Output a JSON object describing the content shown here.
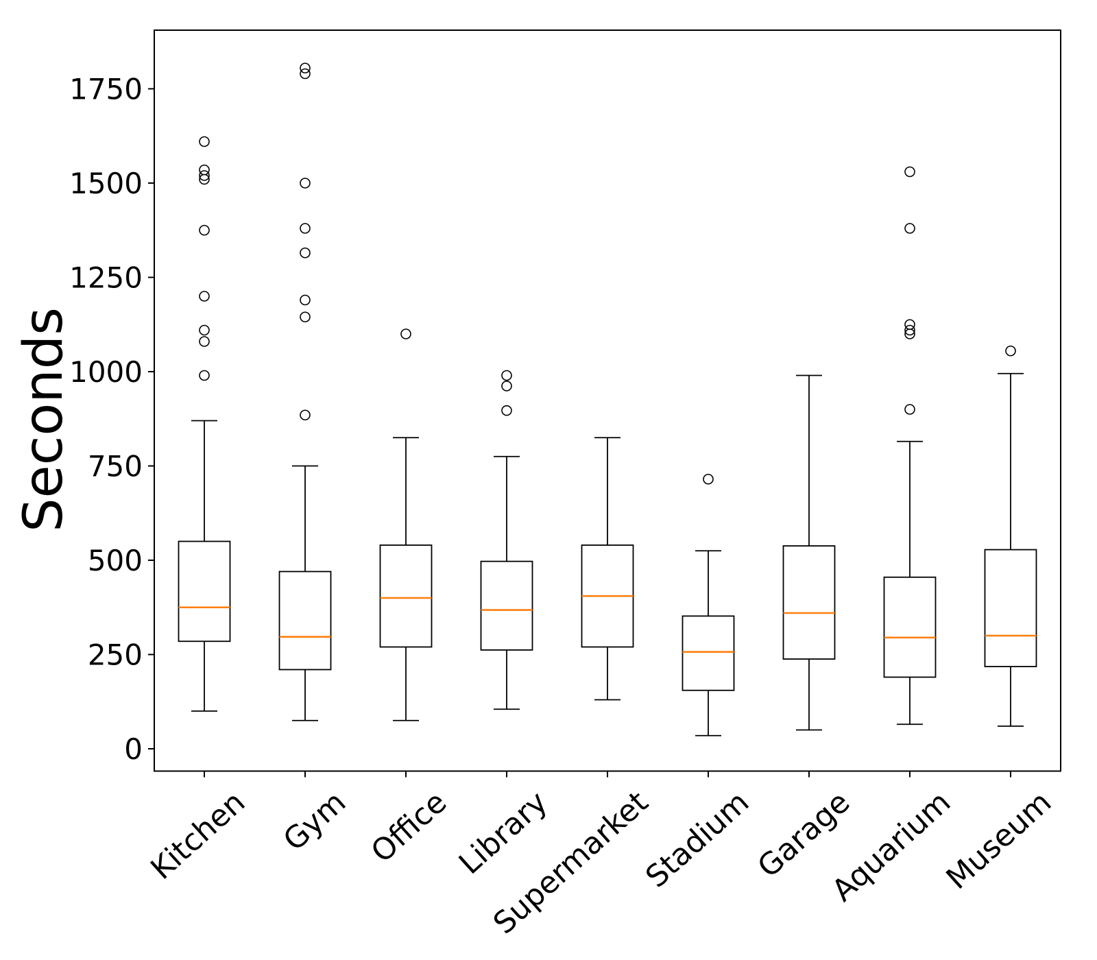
{
  "figure": {
    "background": "#ffffff"
  },
  "chart_data": {
    "type": "boxplot",
    "title": "",
    "xlabel": "",
    "ylabel": "Seconds",
    "categories": [
      "Kitchen",
      "Gym",
      "Office",
      "Library",
      "Supermarket",
      "Stadium",
      "Garage",
      "Aquarium",
      "Museum"
    ],
    "yticks": [
      0,
      250,
      500,
      750,
      1000,
      1250,
      1500,
      1750
    ],
    "ylim": [
      -60,
      1905
    ],
    "grid": false,
    "legend": "none",
    "colors": {
      "median": "#ff7f0e",
      "box_stroke": "#000000",
      "whisker": "#000000",
      "outlier_stroke": "#000000",
      "background": "#ffffff"
    },
    "series": [
      {
        "name": "Kitchen",
        "whislo": 100,
        "q1": 285,
        "med": 375,
        "q3": 550,
        "whishi": 870,
        "outliers": [
          1610,
          1535,
          1520,
          1510,
          1375,
          1200,
          1110,
          1080,
          990
        ]
      },
      {
        "name": "Gym",
        "whislo": 75,
        "q1": 210,
        "med": 297,
        "q3": 470,
        "whishi": 750,
        "outliers": [
          1805,
          1790,
          1500,
          1380,
          1315,
          1190,
          1145,
          885
        ]
      },
      {
        "name": "Office",
        "whislo": 75,
        "q1": 270,
        "med": 400,
        "q3": 540,
        "whishi": 825,
        "outliers": [
          1100
        ]
      },
      {
        "name": "Library",
        "whislo": 105,
        "q1": 262,
        "med": 368,
        "q3": 497,
        "whishi": 775,
        "outliers": [
          990,
          962,
          897
        ]
      },
      {
        "name": "Supermarket",
        "whislo": 130,
        "q1": 270,
        "med": 405,
        "q3": 540,
        "whishi": 825,
        "outliers": []
      },
      {
        "name": "Stadium",
        "whislo": 35,
        "q1": 155,
        "med": 257,
        "q3": 352,
        "whishi": 525,
        "outliers": [
          715
        ]
      },
      {
        "name": "Garage",
        "whislo": 50,
        "q1": 238,
        "med": 360,
        "q3": 538,
        "whishi": 990,
        "outliers": []
      },
      {
        "name": "Aquarium",
        "whislo": 65,
        "q1": 190,
        "med": 295,
        "q3": 455,
        "whishi": 815,
        "outliers": [
          1530,
          1380,
          1125,
          1110,
          1100,
          900
        ]
      },
      {
        "name": "Museum",
        "whislo": 60,
        "q1": 218,
        "med": 300,
        "q3": 528,
        "whishi": 995,
        "outliers": [
          1055
        ]
      }
    ]
  }
}
